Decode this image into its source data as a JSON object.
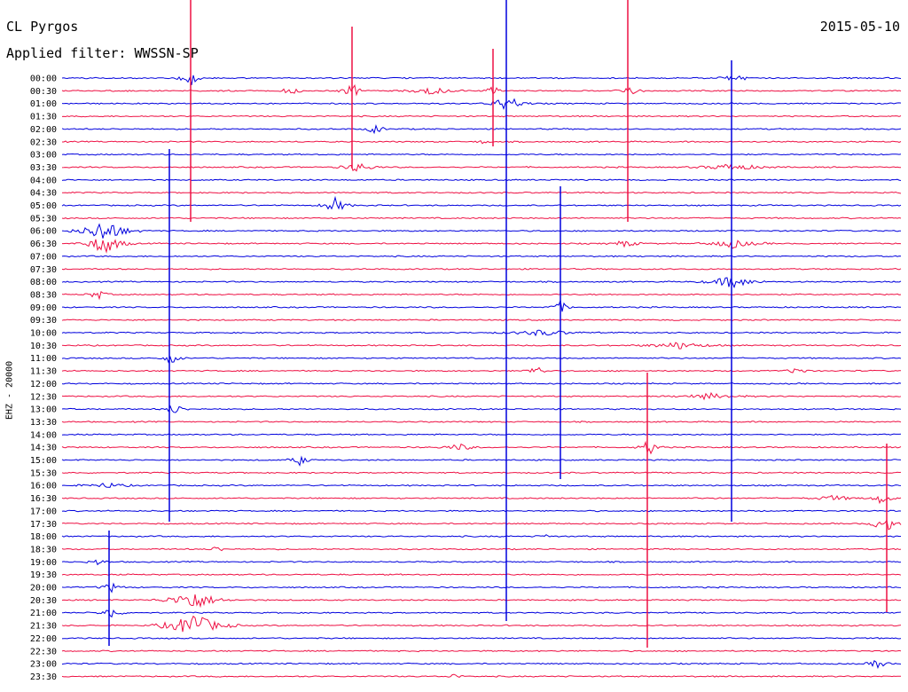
{
  "header": {
    "station": "CL Pyrgos",
    "date": "2015-05-10",
    "filter": "Applied filter: WWSSN-SP"
  },
  "chart_data": {
    "type": "line",
    "subtype": "helicorder",
    "ylabel": "EHZ - 20000",
    "row_colors": [
      "#0000dd",
      "#ee1144"
    ],
    "time_labels": [
      "00:00",
      "00:30",
      "01:00",
      "01:30",
      "02:00",
      "02:30",
      "03:00",
      "03:30",
      "04:00",
      "04:30",
      "05:00",
      "05:30",
      "06:00",
      "06:30",
      "07:00",
      "07:30",
      "08:00",
      "08:30",
      "09:00",
      "09:30",
      "10:00",
      "10:30",
      "11:00",
      "11:30",
      "12:00",
      "12:30",
      "13:00",
      "13:30",
      "14:00",
      "14:30",
      "15:00",
      "15:30",
      "16:00",
      "16:30",
      "17:00",
      "17:30",
      "18:00",
      "18:30",
      "19:00",
      "19:30",
      "20:00",
      "20:30",
      "21:00",
      "21:30",
      "22:00",
      "22:30",
      "23:00",
      "23:30"
    ],
    "row_interval_minutes": 30,
    "grid": false,
    "legend": "none"
  }
}
